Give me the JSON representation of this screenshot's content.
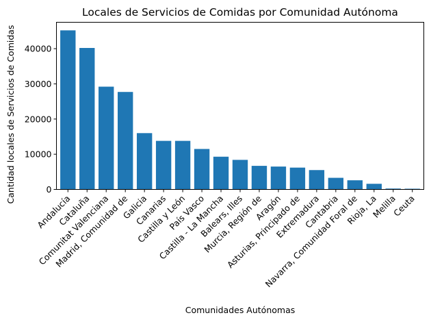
{
  "chart_data": {
    "type": "bar",
    "title": "Locales de Servicios de Comidas por Comunidad Autónoma",
    "xlabel": "Comunidades Autónomas",
    "ylabel": "Cantidad locales de Servicios de Comidas",
    "ylim": [
      0,
      47500
    ],
    "yticks": [
      0,
      10000,
      20000,
      30000,
      40000
    ],
    "grid": false,
    "bar_color": "#1f77b4",
    "categories": [
      "Andalucía",
      "Cataluña",
      "Comunitat Valenciana",
      "Madrid, Comunidad de",
      "Galicia",
      "Canarias",
      "Castilla y León",
      "País Vasco",
      "Castilla - La Mancha",
      "Balears, Illes",
      "Murcia, Región de",
      "Aragón",
      "Asturias, Principado de",
      "Extremadura",
      "Cantabria",
      "Navarra, Comunidad Foral de",
      "Rioja, La",
      "Melilla",
      "Ceuta"
    ],
    "values": [
      45200,
      40200,
      29200,
      27700,
      16000,
      13800,
      13800,
      11500,
      9300,
      8400,
      6700,
      6500,
      6200,
      5500,
      3300,
      2600,
      1600,
      250,
      200
    ]
  }
}
